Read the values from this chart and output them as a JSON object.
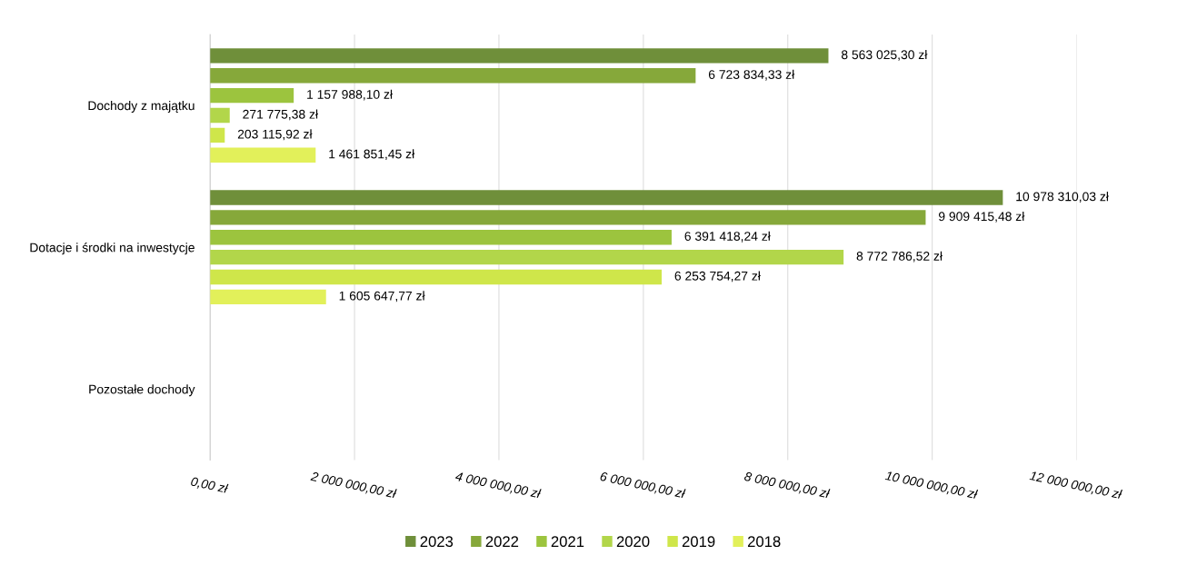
{
  "chart_data": {
    "type": "bar",
    "orientation": "horizontal",
    "categories": [
      "Dochody z majątku",
      "Dotacje i środki na inwestycje",
      "Pozostałe dochody"
    ],
    "series": [
      {
        "name": "2023",
        "color": "#6f8f3a",
        "values": [
          8563025.3,
          10978310.03,
          null
        ],
        "value_labels": [
          "8 563 025,30 zł",
          "10 978 310,03 zł",
          null
        ]
      },
      {
        "name": "2022",
        "color": "#86a83a",
        "values": [
          6723834.33,
          9909415.48,
          null
        ],
        "value_labels": [
          "6 723 834,33 zł",
          "9 909 415,48 zł",
          null
        ]
      },
      {
        "name": "2021",
        "color": "#9cc43e",
        "values": [
          1157988.1,
          6391418.24,
          null
        ],
        "value_labels": [
          "1 157 988,10 zł",
          "6 391 418,24 zł",
          null
        ]
      },
      {
        "name": "2020",
        "color": "#b2d64a",
        "values": [
          271775.38,
          8772786.52,
          null
        ],
        "value_labels": [
          "271 775,38 zł",
          "8 772 786,52 zł",
          null
        ]
      },
      {
        "name": "2019",
        "color": "#cfe64a",
        "values": [
          203115.92,
          6253754.27,
          null
        ],
        "value_labels": [
          "203 115,92 zł",
          "6 253 754,27 zł",
          null
        ]
      },
      {
        "name": "2018",
        "color": "#e2f05a",
        "values": [
          1461851.45,
          1605647.77,
          null
        ],
        "value_labels": [
          "1 461 851,45 zł",
          "1 605 647,77 zł",
          null
        ]
      }
    ],
    "xlim": [
      0,
      12000000
    ],
    "xticks": [
      {
        "value": 0,
        "label": "0,00 zł"
      },
      {
        "value": 2000000,
        "label": "2 000 000,00 zł"
      },
      {
        "value": 4000000,
        "label": "4 000 000,00 zł"
      },
      {
        "value": 6000000,
        "label": "6 000 000,00 zł"
      },
      {
        "value": 8000000,
        "label": "8 000 000,00 zł"
      },
      {
        "value": 10000000,
        "label": "10 000 000,00 zł"
      },
      {
        "value": 12000000,
        "label": "12 000 000,00 zł"
      }
    ],
    "grid": "x",
    "legend": "bottom"
  }
}
